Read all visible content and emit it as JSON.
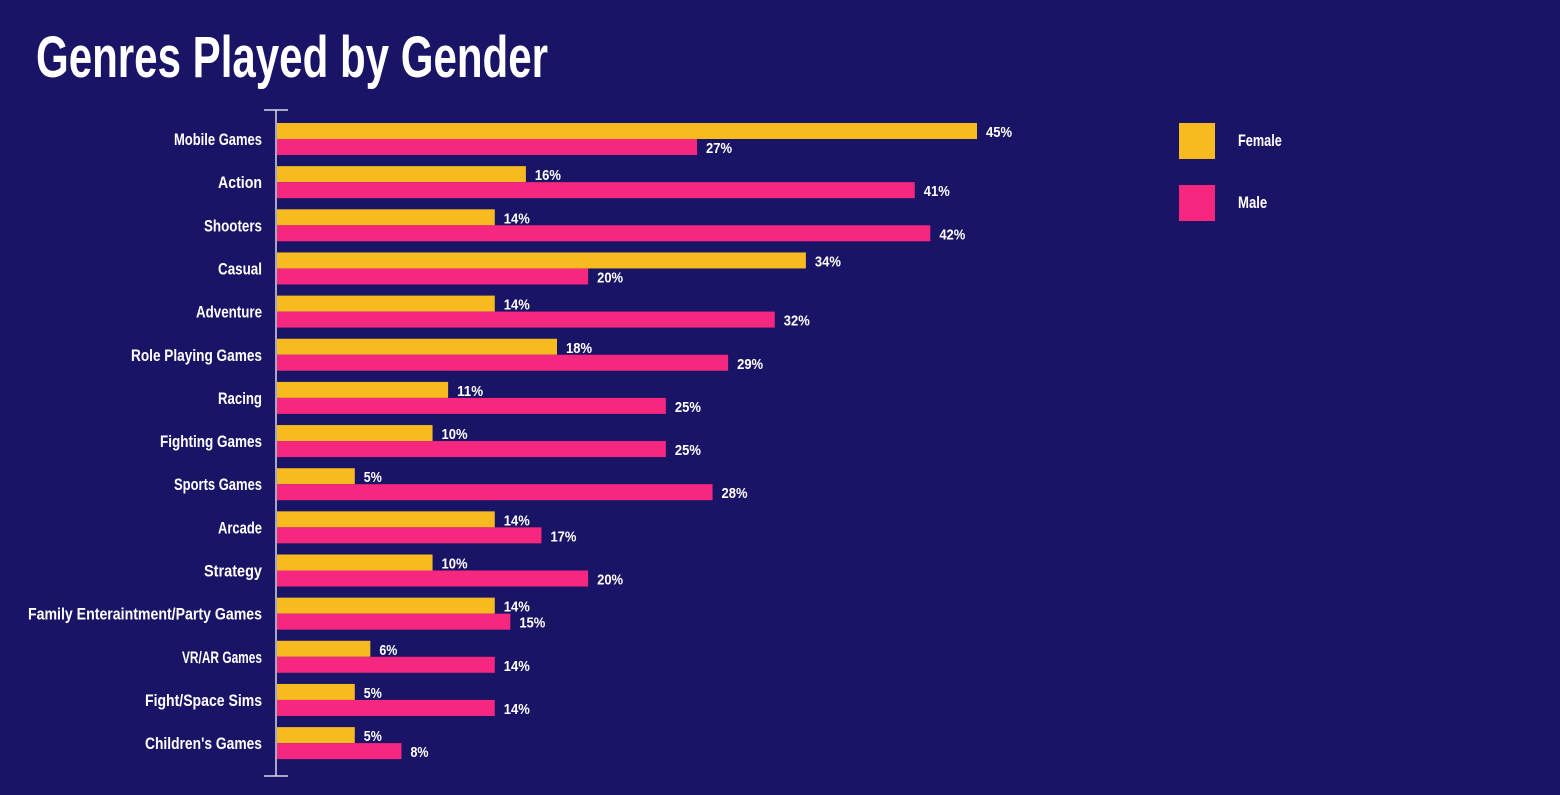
{
  "chart_data": {
    "type": "bar",
    "orientation": "horizontal",
    "title": "Genres Played by Gender",
    "categories": [
      "Mobile Games",
      "Action",
      "Shooters",
      "Casual",
      "Adventure",
      "Role Playing Games",
      "Racing",
      "Fighting Games",
      "Sports Games",
      "Arcade",
      "Strategy",
      "Family Enteraintment/Party Games",
      "VR/AR Games",
      "Fight/Space Sims",
      "Children's Games"
    ],
    "series": [
      {
        "name": "Female",
        "color": "#f7bb1f",
        "values": [
          45,
          16,
          14,
          34,
          14,
          18,
          11,
          10,
          5,
          14,
          10,
          14,
          6,
          5,
          5
        ]
      },
      {
        "name": "Male",
        "color": "#f5277f",
        "values": [
          27,
          41,
          42,
          20,
          32,
          29,
          25,
          25,
          28,
          17,
          20,
          15,
          14,
          14,
          8
        ]
      }
    ],
    "value_suffix": "%",
    "xlim": [
      0,
      45
    ],
    "grid": false,
    "legend_placement": "top-right",
    "background": "#1a1466"
  }
}
